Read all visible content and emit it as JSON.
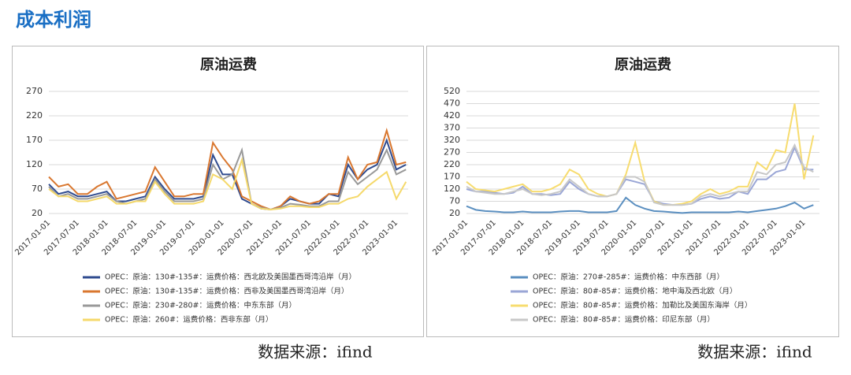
{
  "header": {
    "title": "成本利润"
  },
  "chart_data": [
    {
      "type": "line",
      "title": "原油运费",
      "source": "数据来源：ifind",
      "categories": [
        "2017-01-01",
        null,
        null,
        "2017-07-01",
        null,
        null,
        "2018-01-01",
        null,
        null,
        "2018-07-01",
        null,
        null,
        "2019-01-01",
        null,
        null,
        "2019-07-01",
        null,
        null,
        "2020-01-01",
        null,
        null,
        "2020-07-01",
        null,
        null,
        "2021-01-01",
        null,
        null,
        "2021-07-01",
        null,
        null,
        "2022-01-01",
        null,
        null,
        "2022-07-01",
        null,
        null,
        "2023-01-01",
        null
      ],
      "ylim": [
        20,
        270
      ],
      "yticks": [
        20,
        70,
        120,
        170,
        220,
        270
      ],
      "series": [
        {
          "name": "OPEC：原油：130#-135#：运费价格：西北欧及美国墨西哥湾沿岸（月）",
          "color": "#2f4b8f",
          "values": [
            80,
            60,
            65,
            55,
            55,
            60,
            65,
            45,
            45,
            50,
            55,
            95,
            70,
            50,
            50,
            50,
            55,
            140,
            100,
            100,
            50,
            40,
            30,
            28,
            35,
            50,
            45,
            40,
            40,
            60,
            55,
            120,
            90,
            110,
            120,
            170,
            110,
            120
          ]
        },
        {
          "name": "OPEC：原油：130#-135#：运费价格：西非及美国墨西哥湾沿岸（月）",
          "color": "#d9772f",
          "values": [
            95,
            75,
            80,
            60,
            60,
            75,
            85,
            50,
            55,
            60,
            65,
            115,
            85,
            55,
            55,
            60,
            60,
            165,
            135,
            110,
            55,
            45,
            35,
            28,
            35,
            55,
            45,
            40,
            45,
            60,
            60,
            135,
            90,
            120,
            125,
            190,
            120,
            125
          ]
        },
        {
          "name": "OPEC：原油：230#-280#：运费价格：中东东部（月）",
          "color": "#999999",
          "values": [
            75,
            55,
            60,
            50,
            50,
            55,
            60,
            45,
            40,
            45,
            50,
            90,
            65,
            45,
            45,
            45,
            50,
            120,
            90,
            100,
            150,
            40,
            32,
            28,
            32,
            40,
            38,
            35,
            35,
            45,
            45,
            105,
            80,
            95,
            110,
            150,
            100,
            110
          ]
        },
        {
          "name": "OPEC：原油：260#：运费价格：西非东部（月）",
          "color": "#f5d96b",
          "values": [
            70,
            55,
            55,
            45,
            45,
            50,
            55,
            40,
            40,
            45,
            45,
            85,
            60,
            40,
            40,
            40,
            45,
            100,
            90,
            70,
            130,
            40,
            30,
            28,
            30,
            35,
            35,
            33,
            33,
            40,
            40,
            50,
            55,
            75,
            90,
            105,
            50,
            85
          ]
        }
      ]
    },
    {
      "type": "line",
      "title": "原油运费",
      "source": "数据来源：ifind",
      "categories": [
        "2017-01-01",
        null,
        null,
        "2017-07-01",
        null,
        null,
        "2018-01-01",
        null,
        null,
        "2018-07-01",
        null,
        null,
        "2019-01-01",
        null,
        null,
        "2019-07-01",
        null,
        null,
        "2020-01-01",
        null,
        null,
        "2020-07-01",
        null,
        null,
        "2021-01-01",
        null,
        null,
        "2021-07-01",
        null,
        null,
        "2022-01-01",
        null,
        null,
        "2022-07-01",
        null,
        null,
        "2023-01-01",
        null
      ],
      "ylim": [
        20,
        520
      ],
      "yticks": [
        20,
        70,
        120,
        170,
        220,
        270,
        320,
        370,
        420,
        470,
        520
      ],
      "series": [
        {
          "name": "OPEC：原油：270#-285#：运费价格：中东西部（月）",
          "color": "#5b8fc0",
          "values": [
            50,
            35,
            30,
            28,
            25,
            25,
            28,
            25,
            25,
            25,
            28,
            30,
            30,
            25,
            25,
            25,
            30,
            85,
            55,
            40,
            30,
            28,
            25,
            22,
            25,
            25,
            25,
            25,
            25,
            28,
            25,
            30,
            35,
            40,
            50,
            65,
            40,
            55
          ]
        },
        {
          "name": "OPEC：原油：80#-85#：运费价格：地中海及西北欧（月）",
          "color": "#9aa6d6",
          "values": [
            120,
            110,
            110,
            105,
            100,
            105,
            130,
            100,
            100,
            95,
            100,
            150,
            120,
            100,
            90,
            90,
            100,
            160,
            150,
            140,
            70,
            60,
            55,
            55,
            60,
            80,
            90,
            80,
            85,
            110,
            100,
            160,
            160,
            190,
            200,
            290,
            200,
            200
          ]
        },
        {
          "name": "OPEC：原油：80#-85#：运费价格：加勒比及美国东海岸（月）",
          "color": "#f7dc6f",
          "values": [
            150,
            120,
            115,
            110,
            120,
            130,
            140,
            110,
            110,
            120,
            140,
            200,
            180,
            120,
            100,
            90,
            100,
            180,
            310,
            150,
            70,
            55,
            55,
            60,
            70,
            100,
            120,
            100,
            110,
            130,
            130,
            230,
            200,
            280,
            270,
            470,
            160,
            340
          ]
        },
        {
          "name": "OPEC：原油：80#-85#：运费价格：印尼东部（月）",
          "color": "#c8c8c8",
          "values": [
            130,
            110,
            105,
            100,
            100,
            110,
            120,
            100,
            95,
            100,
            110,
            160,
            130,
            100,
            90,
            90,
            100,
            170,
            170,
            150,
            65,
            55,
            55,
            55,
            60,
            90,
            100,
            90,
            100,
            110,
            110,
            190,
            180,
            220,
            230,
            300,
            210,
            190
          ]
        }
      ]
    }
  ]
}
